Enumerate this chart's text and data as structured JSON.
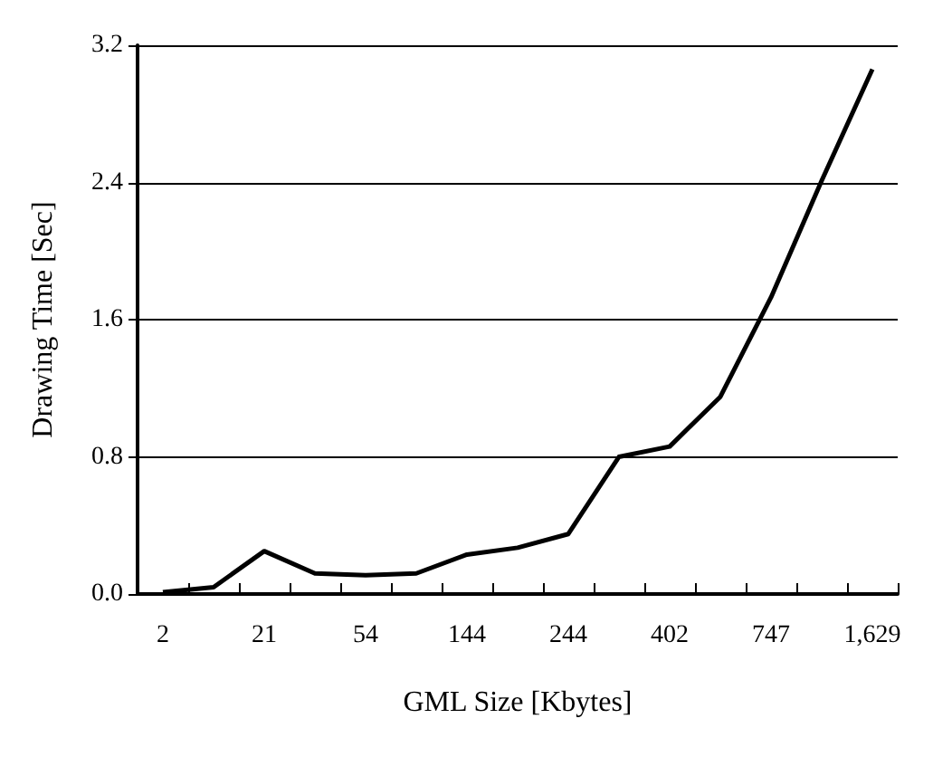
{
  "chart_data": {
    "type": "line",
    "xlabel": "GML Size [Kbytes]",
    "ylabel": "Drawing Time [Sec]",
    "categories": [
      "2",
      null,
      "21",
      null,
      "54",
      null,
      "144",
      null,
      "244",
      null,
      "402",
      null,
      "747",
      null,
      "1,629"
    ],
    "series": [
      {
        "color": "#000000",
        "values": [
          0.01,
          0.04,
          0.25,
          0.12,
          0.11,
          0.12,
          0.23,
          0.27,
          0.35,
          0.8,
          0.86,
          1.15,
          1.73,
          2.41,
          3.06
        ]
      }
    ],
    "ylim": [
      0,
      3.2
    ],
    "yticks": [
      {
        "value": 0,
        "label": "0.0"
      },
      0.8,
      1.6,
      2.4,
      3.2
    ],
    "grid": "y",
    "marker": "none",
    "line_style": "solid"
  }
}
